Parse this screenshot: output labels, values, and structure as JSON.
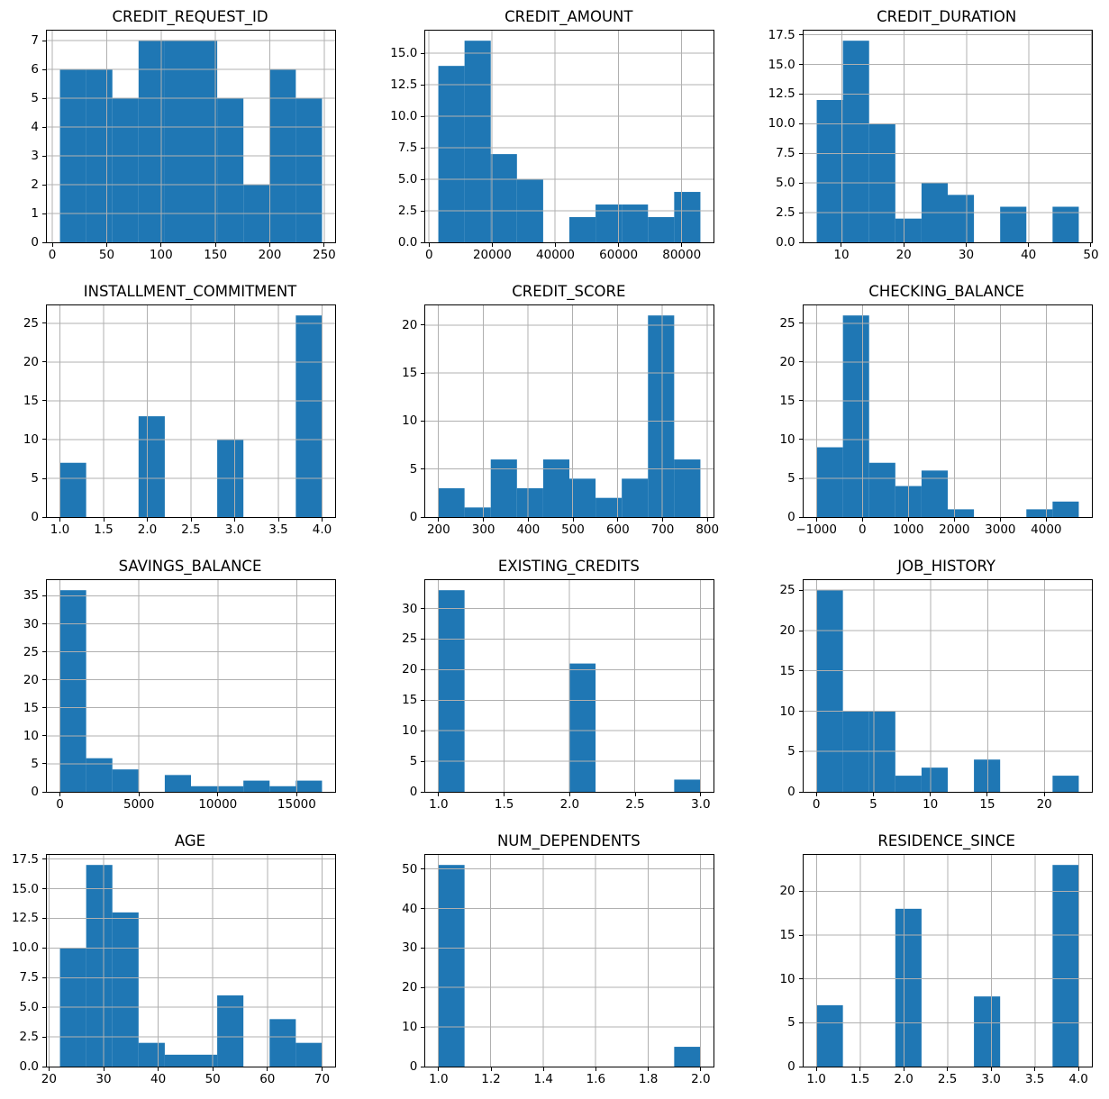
{
  "figure": {
    "background": "#ffffff",
    "bar_color": "#1f77b4",
    "grid_color": "#b0b0b0",
    "spine_color": "#000000",
    "text_color": "#000000",
    "rows": 4,
    "cols": 3,
    "total_records": 56
  },
  "chart_data": [
    {
      "type": "bar",
      "subtype": "histogram",
      "title": "CREDIT_REQUEST_ID",
      "bin_start": 7,
      "bin_end": 248,
      "num_bins": 10,
      "counts": [
        6,
        6,
        5,
        7,
        7,
        7,
        5,
        2,
        6,
        5
      ],
      "xtick_values": [
        0,
        50,
        100,
        150,
        200,
        250
      ],
      "xtick_labels": [
        "0",
        "50",
        "100",
        "150",
        "200",
        "250"
      ],
      "ytick_values": [
        0,
        1,
        2,
        3,
        4,
        5,
        6,
        7
      ],
      "ytick_labels": [
        "0",
        "1",
        "2",
        "3",
        "4",
        "5",
        "6",
        "7"
      ],
      "ylim": [
        0,
        7.35
      ],
      "grid": true
    },
    {
      "type": "bar",
      "subtype": "histogram",
      "title": "CREDIT_AMOUNT",
      "bin_start": 3000,
      "bin_end": 86000,
      "num_bins": 10,
      "counts": [
        14,
        16,
        7,
        5,
        0,
        2,
        3,
        3,
        2,
        4
      ],
      "xtick_values": [
        0,
        20000,
        40000,
        60000,
        80000
      ],
      "xtick_labels": [
        "0",
        "20000",
        "40000",
        "60000",
        "80000"
      ],
      "ytick_values": [
        0,
        2.5,
        5,
        7.5,
        10,
        12.5,
        15
      ],
      "ytick_labels": [
        "0.0",
        "2.5",
        "5.0",
        "7.5",
        "10.0",
        "12.5",
        "15.0"
      ],
      "ylim": [
        0,
        16.8
      ],
      "grid": true
    },
    {
      "type": "bar",
      "subtype": "histogram",
      "title": "CREDIT_DURATION",
      "bin_start": 6,
      "bin_end": 48,
      "num_bins": 10,
      "counts": [
        12,
        17,
        10,
        2,
        5,
        4,
        0,
        3,
        0,
        3
      ],
      "xtick_values": [
        10,
        20,
        30,
        40,
        50
      ],
      "xtick_labels": [
        "10",
        "20",
        "30",
        "40",
        "50"
      ],
      "ytick_values": [
        0,
        2.5,
        5,
        7.5,
        10,
        12.5,
        15,
        17.5
      ],
      "ytick_labels": [
        "0.0",
        "2.5",
        "5.0",
        "7.5",
        "10.0",
        "12.5",
        "15.0",
        "17.5"
      ],
      "ylim": [
        0,
        17.85
      ],
      "grid": true
    },
    {
      "type": "bar",
      "subtype": "histogram",
      "title": "INSTALLMENT_COMMITMENT",
      "bin_start": 1,
      "bin_end": 4,
      "num_bins": 10,
      "counts": [
        7,
        0,
        0,
        13,
        0,
        0,
        10,
        0,
        0,
        26
      ],
      "xtick_values": [
        1,
        1.5,
        2,
        2.5,
        3,
        3.5,
        4
      ],
      "xtick_labels": [
        "1.0",
        "1.5",
        "2.0",
        "2.5",
        "3.0",
        "3.5",
        "4.0"
      ],
      "ytick_values": [
        0,
        5,
        10,
        15,
        20,
        25
      ],
      "ytick_labels": [
        "0",
        "5",
        "10",
        "15",
        "20",
        "25"
      ],
      "ylim": [
        0,
        27.3
      ],
      "grid": true
    },
    {
      "type": "bar",
      "subtype": "histogram",
      "title": "CREDIT_SCORE",
      "bin_start": 200,
      "bin_end": 785,
      "num_bins": 10,
      "counts": [
        3,
        1,
        6,
        3,
        6,
        4,
        2,
        4,
        21,
        6
      ],
      "xtick_values": [
        200,
        300,
        400,
        500,
        600,
        700,
        800
      ],
      "xtick_labels": [
        "200",
        "300",
        "400",
        "500",
        "600",
        "700",
        "800"
      ],
      "ytick_values": [
        0,
        5,
        10,
        15,
        20
      ],
      "ytick_labels": [
        "0",
        "5",
        "10",
        "15",
        "20"
      ],
      "ylim": [
        0,
        22.05
      ],
      "grid": true
    },
    {
      "type": "bar",
      "subtype": "histogram",
      "title": "CHECKING_BALANCE",
      "bin_start": -1000,
      "bin_end": 4700,
      "num_bins": 10,
      "counts": [
        9,
        26,
        7,
        4,
        6,
        1,
        0,
        0,
        1,
        2
      ],
      "xtick_values": [
        -1000,
        0,
        1000,
        2000,
        3000,
        4000
      ],
      "xtick_labels": [
        "−1000",
        "0",
        "1000",
        "2000",
        "3000",
        "4000"
      ],
      "ytick_values": [
        0,
        5,
        10,
        15,
        20,
        25
      ],
      "ytick_labels": [
        "0",
        "5",
        "10",
        "15",
        "20",
        "25"
      ],
      "ylim": [
        0,
        27.3
      ],
      "grid": true
    },
    {
      "type": "bar",
      "subtype": "histogram",
      "title": "SAVINGS_BALANCE",
      "bin_start": 0,
      "bin_end": 16600,
      "num_bins": 10,
      "counts": [
        36,
        6,
        4,
        0,
        3,
        1,
        1,
        2,
        1,
        2
      ],
      "xtick_values": [
        0,
        5000,
        10000,
        15000
      ],
      "xtick_labels": [
        "0",
        "5000",
        "10000",
        "15000"
      ],
      "ytick_values": [
        0,
        5,
        10,
        15,
        20,
        25,
        30,
        35
      ],
      "ytick_labels": [
        "0",
        "5",
        "10",
        "15",
        "20",
        "25",
        "30",
        "35"
      ],
      "ylim": [
        0,
        37.8
      ],
      "grid": true
    },
    {
      "type": "bar",
      "subtype": "histogram",
      "title": "EXISTING_CREDITS",
      "bin_start": 1,
      "bin_end": 3,
      "num_bins": 10,
      "counts": [
        33,
        0,
        0,
        0,
        0,
        21,
        0,
        0,
        0,
        2
      ],
      "xtick_values": [
        1,
        1.5,
        2,
        2.5,
        3
      ],
      "xtick_labels": [
        "1.0",
        "1.5",
        "2.0",
        "2.5",
        "3.0"
      ],
      "ytick_values": [
        0,
        5,
        10,
        15,
        20,
        25,
        30
      ],
      "ytick_labels": [
        "0",
        "5",
        "10",
        "15",
        "20",
        "25",
        "30"
      ],
      "ylim": [
        0,
        34.65
      ],
      "grid": true
    },
    {
      "type": "bar",
      "subtype": "histogram",
      "title": "JOB_HISTORY",
      "bin_start": 0,
      "bin_end": 23,
      "num_bins": 10,
      "counts": [
        25,
        10,
        10,
        2,
        3,
        0,
        4,
        0,
        0,
        2
      ],
      "xtick_values": [
        0,
        5,
        10,
        15,
        20
      ],
      "xtick_labels": [
        "0",
        "5",
        "10",
        "15",
        "20"
      ],
      "ytick_values": [
        0,
        5,
        10,
        15,
        20,
        25
      ],
      "ytick_labels": [
        "0",
        "5",
        "10",
        "15",
        "20",
        "25"
      ],
      "ylim": [
        0,
        26.25
      ],
      "grid": true
    },
    {
      "type": "bar",
      "subtype": "histogram",
      "title": "AGE",
      "bin_start": 22,
      "bin_end": 70,
      "num_bins": 10,
      "counts": [
        10,
        17,
        13,
        2,
        1,
        1,
        6,
        0,
        4,
        2
      ],
      "xtick_values": [
        20,
        30,
        40,
        50,
        60,
        70
      ],
      "xtick_labels": [
        "20",
        "30",
        "40",
        "50",
        "60",
        "70"
      ],
      "ytick_values": [
        0,
        2.5,
        5,
        7.5,
        10,
        12.5,
        15,
        17.5
      ],
      "ytick_labels": [
        "0.0",
        "2.5",
        "5.0",
        "7.5",
        "10.0",
        "12.5",
        "15.0",
        "17.5"
      ],
      "ylim": [
        0,
        17.85
      ],
      "grid": true
    },
    {
      "type": "bar",
      "subtype": "histogram",
      "title": "NUM_DEPENDENTS",
      "bin_start": 1,
      "bin_end": 2,
      "num_bins": 10,
      "counts": [
        51,
        0,
        0,
        0,
        0,
        0,
        0,
        0,
        0,
        5
      ],
      "xtick_values": [
        1,
        1.2,
        1.4,
        1.6,
        1.8,
        2
      ],
      "xtick_labels": [
        "1.0",
        "1.2",
        "1.4",
        "1.6",
        "1.8",
        "2.0"
      ],
      "ytick_values": [
        0,
        10,
        20,
        30,
        40,
        50
      ],
      "ytick_labels": [
        "0",
        "10",
        "20",
        "30",
        "40",
        "50"
      ],
      "ylim": [
        0,
        53.55
      ],
      "grid": true
    },
    {
      "type": "bar",
      "subtype": "histogram",
      "title": "RESIDENCE_SINCE",
      "bin_start": 1,
      "bin_end": 4,
      "num_bins": 10,
      "counts": [
        7,
        0,
        0,
        18,
        0,
        0,
        8,
        0,
        0,
        23
      ],
      "xtick_values": [
        1,
        1.5,
        2,
        2.5,
        3,
        3.5,
        4
      ],
      "xtick_labels": [
        "1.0",
        "1.5",
        "2.0",
        "2.5",
        "3.0",
        "3.5",
        "4.0"
      ],
      "ytick_values": [
        0,
        5,
        10,
        15,
        20
      ],
      "ytick_labels": [
        "0",
        "5",
        "10",
        "15",
        "20"
      ],
      "ylim": [
        0,
        24.15
      ],
      "grid": true
    }
  ]
}
